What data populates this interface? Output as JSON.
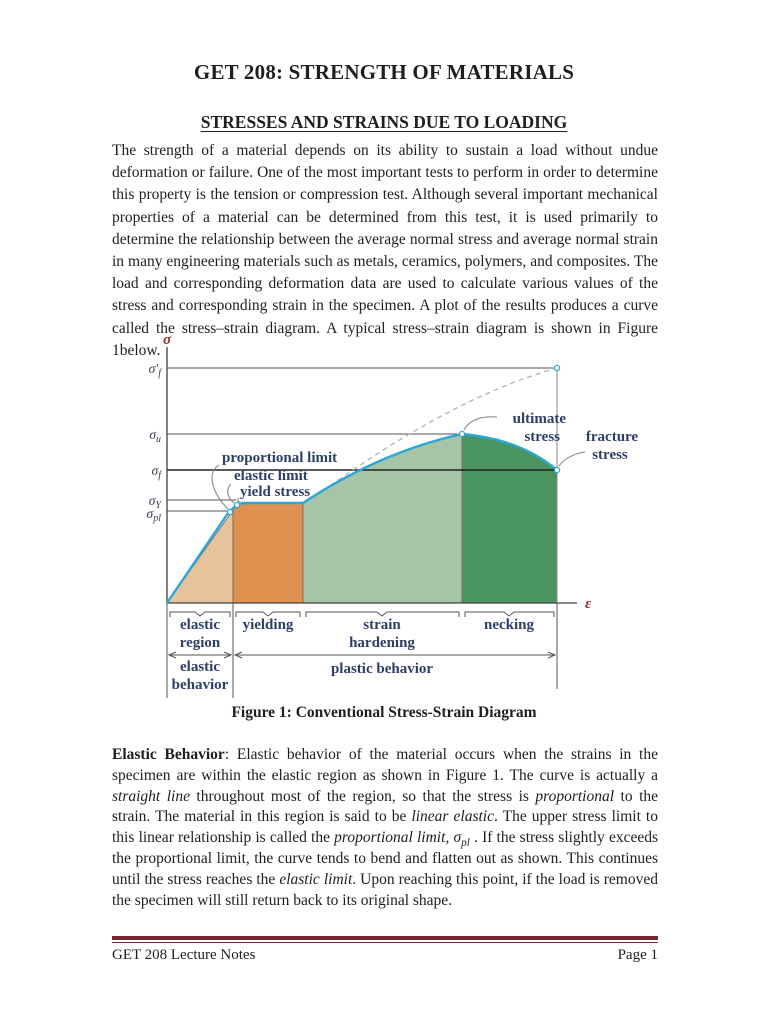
{
  "doc": {
    "title": "GET 208: STRENGTH OF MATERIALS",
    "heading": "STRESSES AND STRAINS DUE TO LOADING",
    "intro_runs": [
      {
        "t": "The strength of a material depends on its ability to sustain a load without undue deformation or failure. One of the most important tests to perform in order to determine this property is the tension or compression test. Although several important mechanical properties of a material can be determined from this test, it is used primarily to determine the relationship between the average normal stress and average normal strain in many engineering materials such as metals, ceramics, polymers, and composites. The load and corresponding deformation data are used to calculate various values of the stress and corresponding strain in the specimen. A plot of the results produces a curve called the stress–strain diagram. A typical stress–strain diagram is shown in Figure 1below."
      }
    ],
    "elastic_runs": [
      {
        "t": "Elastic Behavior",
        "b": true
      },
      {
        "t": ": Elastic behavior of the material occurs when the strains in the specimen are within the elastic region as shown in Figure 1. The curve is actually a "
      },
      {
        "t": "straight line",
        "i": true
      },
      {
        "t": " throughout most of the region, so that the stress is "
      },
      {
        "t": "proportional",
        "i": true
      },
      {
        "t": " to the strain. The material in this region is said to be "
      },
      {
        "t": "linear elastic",
        "i": true
      },
      {
        "t": ". The upper stress limit to this linear relationship is called the "
      },
      {
        "t": "proportional limit",
        "i": true
      },
      {
        "t": ", "
      },
      {
        "t": "σ",
        "i": true
      },
      {
        "t": "pl",
        "i": true,
        "sub": true
      },
      {
        "t": " . If the stress slightly exceeds the proportional limit, the curve tends to bend and flatten out as shown. This continues until the stress reaches the "
      },
      {
        "t": "elastic limit",
        "i": true
      },
      {
        "t": ". Upon reaching this point, if the load is removed the specimen will still return back to its original shape."
      }
    ],
    "footer_left": "GET 208 Lecture Notes",
    "footer_right": "Page 1",
    "rule_color": "#6d2a33"
  },
  "figure": {
    "caption": "Figure 1: Conventional Stress-Strain Diagram",
    "y_axis_symbol": "σ",
    "x_axis_symbol": "ε",
    "ticks": [
      {
        "main": "σ′",
        "sub": "f"
      },
      {
        "main": "σ",
        "sub": "u"
      },
      {
        "main": "σ",
        "sub": "f"
      },
      {
        "main": "σ",
        "sub": "Y"
      },
      {
        "main": "σ",
        "sub": "pl"
      }
    ],
    "point_labels": {
      "proportional_limit": "proportional limit",
      "elastic_limit": "elastic limit",
      "yield_stress": "yield stress",
      "ultimate_line1": "ultimate",
      "ultimate_line2": "stress",
      "fracture_line1": "fracture",
      "fracture_line2": "stress"
    },
    "regions": {
      "elastic_region_line1": "elastic",
      "elastic_region_line2": "region",
      "yielding": "yielding",
      "strain_hardening_line1": "strain",
      "strain_hardening_line2": "hardening",
      "necking": "necking",
      "elastic_behavior_line1": "elastic",
      "elastic_behavior_line2": "behavior",
      "plastic_behavior": "plastic behavior"
    },
    "colors": {
      "elastic_fill": "#e8c29b",
      "yielding_fill": "#e0914f",
      "hardening_fill": "#a5c5a6",
      "necking_fill": "#4a9460",
      "curve": "#2aa7d8",
      "label": "#2e3f66",
      "tick_label": "#3a3f55",
      "axis_symbol": "#8c2f24"
    }
  }
}
